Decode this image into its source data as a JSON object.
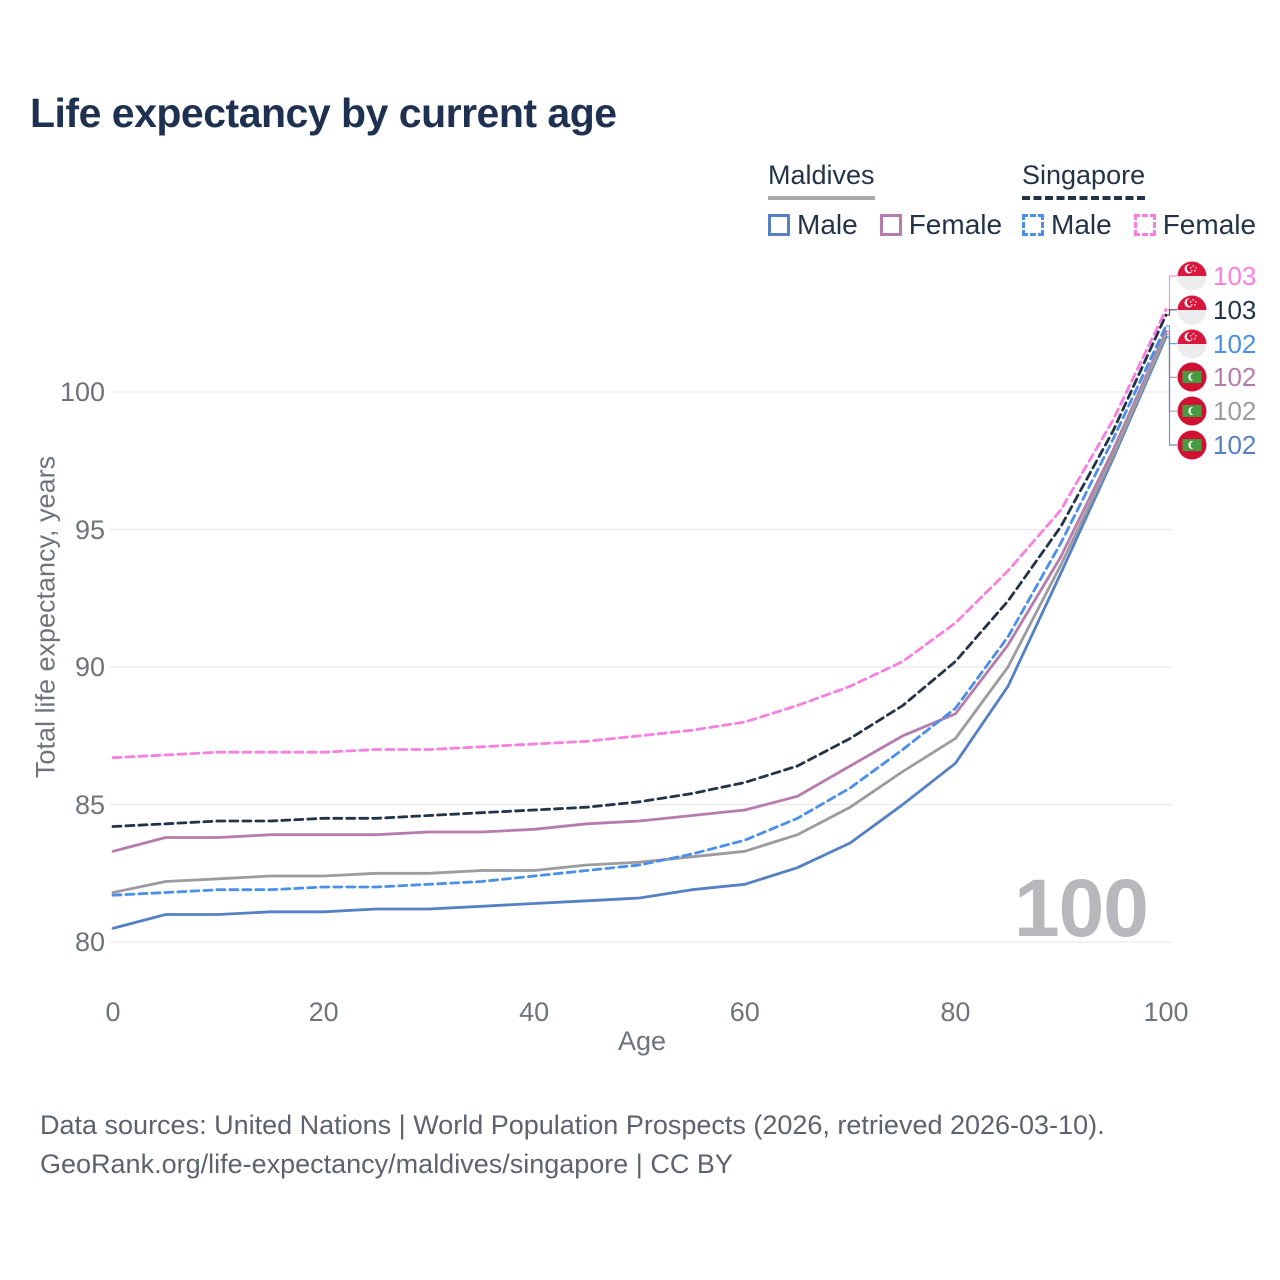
{
  "title": "Life expectancy by current age",
  "legend": {
    "groups": [
      {
        "label": "Maldives",
        "line_style": "solid",
        "underline_color": "#a8a8a8",
        "items": [
          {
            "label": "Male",
            "color": "#5580c4",
            "dash": "solid"
          },
          {
            "label": "Female",
            "color": "#b57cad",
            "dash": "solid"
          }
        ]
      },
      {
        "label": "Singapore",
        "line_style": "dashed",
        "underline_color": "#233449",
        "items": [
          {
            "label": "Male",
            "color": "#4a8fe8",
            "dash": "dashed"
          },
          {
            "label": "Female",
            "color": "#f77fdf",
            "dash": "dashed"
          }
        ]
      }
    ]
  },
  "chart_data": {
    "type": "line",
    "title": "Life expectancy by current age",
    "xlabel": "Age",
    "ylabel": "Total life expectancy, years",
    "watermark": "100",
    "x_ticks": [
      0,
      20,
      40,
      60,
      80,
      100
    ],
    "y_ticks": [
      80,
      85,
      90,
      95,
      100
    ],
    "xlim": [
      0,
      100
    ],
    "ylim": [
      79.5,
      103.5
    ],
    "grid": "horizontal",
    "legend_position": "top-right",
    "x": [
      0,
      5,
      10,
      15,
      20,
      25,
      30,
      35,
      40,
      45,
      50,
      55,
      60,
      65,
      70,
      75,
      80,
      85,
      90,
      95,
      100
    ],
    "series": [
      {
        "id": "maldives-male",
        "name": "Maldives Male",
        "country": "Maldives",
        "sex": "Male",
        "color": "#5580c4",
        "dash": "solid",
        "values": [
          80.5,
          81.0,
          81.0,
          81.1,
          81.1,
          81.2,
          81.2,
          81.3,
          81.4,
          81.5,
          81.6,
          81.9,
          82.1,
          82.7,
          83.6,
          85.0,
          86.5,
          89.3,
          93.4,
          97.6,
          102.0
        ]
      },
      {
        "id": "maldives-female",
        "name": "Maldives Female",
        "country": "Maldives",
        "sex": "Female",
        "color": "#b57cad",
        "dash": "solid",
        "values": [
          83.3,
          83.8,
          83.8,
          83.9,
          83.9,
          83.9,
          84.0,
          84.0,
          84.1,
          84.3,
          84.4,
          84.6,
          84.8,
          85.3,
          86.4,
          87.5,
          88.3,
          90.8,
          94.0,
          97.9,
          102.2
        ]
      },
      {
        "id": "maldives-total",
        "name": "Maldives (both sexes)",
        "country": "Maldives",
        "sex": "Total",
        "color": "#9c9ca0",
        "dash": "solid",
        "values": [
          81.8,
          82.2,
          82.3,
          82.4,
          82.4,
          82.5,
          82.5,
          82.6,
          82.6,
          82.8,
          82.9,
          83.1,
          83.3,
          83.9,
          84.9,
          86.2,
          87.4,
          90.0,
          93.7,
          97.7,
          102.1
        ]
      },
      {
        "id": "singapore-male",
        "name": "Singapore Male",
        "country": "Singapore",
        "sex": "Male",
        "color": "#4a8fe8",
        "dash": "dashed",
        "values": [
          81.7,
          81.8,
          81.9,
          81.9,
          82.0,
          82.0,
          82.1,
          82.2,
          82.4,
          82.6,
          82.8,
          83.2,
          83.7,
          84.5,
          85.6,
          87.0,
          88.5,
          91.1,
          94.5,
          98.3,
          102.4
        ]
      },
      {
        "id": "singapore-total",
        "name": "Singapore (both sexes)",
        "country": "Singapore",
        "sex": "Total",
        "color": "#233449",
        "dash": "dashed",
        "values": [
          84.2,
          84.3,
          84.4,
          84.4,
          84.5,
          84.5,
          84.6,
          84.7,
          84.8,
          84.9,
          85.1,
          85.4,
          85.8,
          86.4,
          87.4,
          88.6,
          90.2,
          92.4,
          95.1,
          98.6,
          102.8
        ]
      },
      {
        "id": "singapore-female",
        "name": "Singapore Female",
        "country": "Singapore",
        "sex": "Female",
        "color": "#f77fdf",
        "dash": "dashed",
        "values": [
          86.7,
          86.8,
          86.9,
          86.9,
          86.9,
          87.0,
          87.0,
          87.1,
          87.2,
          87.3,
          87.5,
          87.7,
          88.0,
          88.6,
          89.3,
          90.2,
          91.6,
          93.5,
          95.7,
          99.0,
          103.0
        ]
      }
    ]
  },
  "end_labels": [
    {
      "value": "103",
      "color": "#f77fdf",
      "flag": "singapore",
      "series": "Singapore Female"
    },
    {
      "value": "103",
      "color": "#233449",
      "flag": "singapore",
      "series": "Singapore (both sexes)"
    },
    {
      "value": "102",
      "color": "#4a8fe8",
      "flag": "singapore",
      "series": "Singapore Male"
    },
    {
      "value": "102",
      "color": "#b57cad",
      "flag": "maldives",
      "series": "Maldives Female"
    },
    {
      "value": "102",
      "color": "#9c9ca0",
      "flag": "maldives",
      "series": "Maldives (both sexes)"
    },
    {
      "value": "102",
      "color": "#5580c4",
      "flag": "maldives",
      "series": "Maldives Male"
    }
  ],
  "flags": {
    "singapore": {
      "red": "#d9163b",
      "white": "#ffffff",
      "hatch_light": "#f4f4f5",
      "hatch_dark": "#e3e3e7"
    },
    "maldives": {
      "red": "#d21034",
      "green": "#459b3e",
      "white": "#ffffff"
    }
  },
  "footer": {
    "line1": "Data sources: United Nations | World Population Prospects (2026, retrieved 2026-03-10).",
    "line2": "GeoRank.org/life-expectancy/maldives/singapore | CC BY"
  }
}
